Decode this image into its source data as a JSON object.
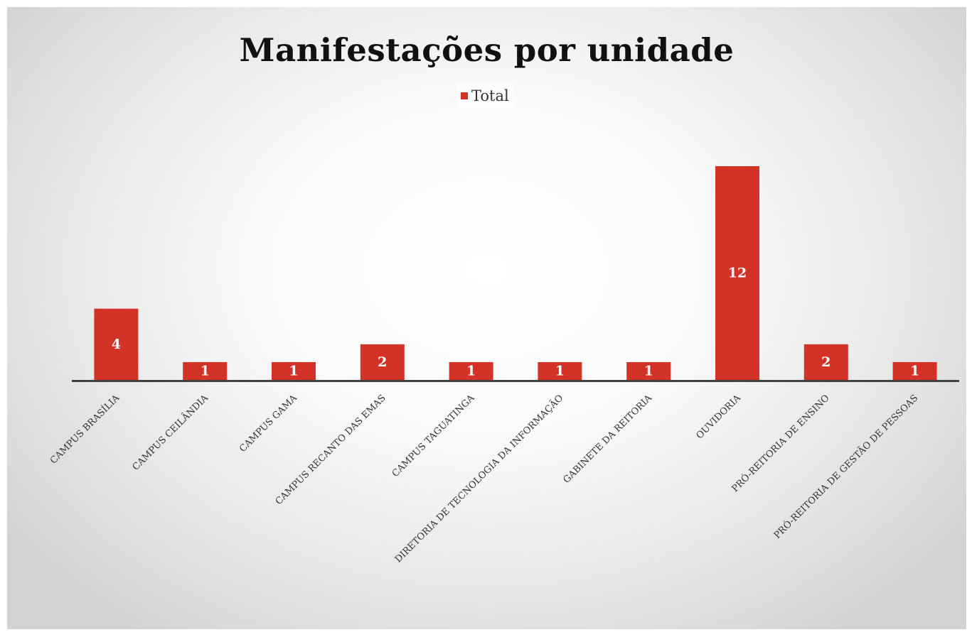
{
  "chart_data": {
    "type": "bar",
    "title": "Manifestações por unidade",
    "legend": {
      "position": "top",
      "entries": [
        "Total"
      ]
    },
    "categories": [
      "CAMPUS BRASÍLIA",
      "CAMPUS CEILÂNDIA",
      "CAMPUS GAMA",
      "CAMPUS RECANTO DAS EMAS",
      "CAMPUS TAGUATINGA",
      "DIRETORIA DE TECNOLOGIA DA INFORMAÇÃO",
      "GABINETE DA REITORIA",
      "OUVIDORIA",
      "PRÓ-REITORIA DE ENSINO",
      "PRÓ-REITORIA DE GESTÃO DE PESSOAS"
    ],
    "series": [
      {
        "name": "Total",
        "values": [
          4,
          1,
          1,
          2,
          1,
          1,
          1,
          12,
          2,
          1
        ]
      }
    ],
    "ylim": [
      0,
      12
    ],
    "grid": false,
    "data_labels": true,
    "xlabel": "",
    "ylabel": "",
    "colors": {
      "bar": "#d33227",
      "axis": "#404040",
      "data_label": "#ffffff"
    }
  }
}
